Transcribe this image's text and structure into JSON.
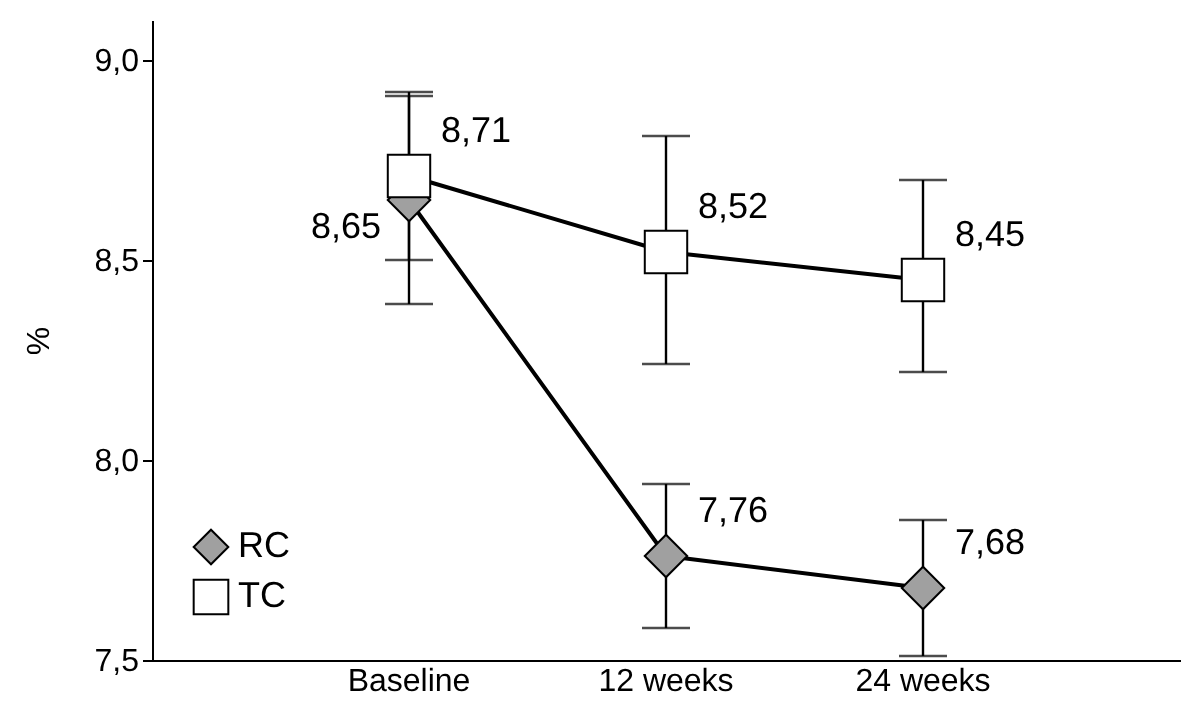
{
  "chart_data": {
    "type": "line",
    "ylabel": "%",
    "categories": [
      "Baseline",
      "12 weeks",
      "24 weeks"
    ],
    "series": [
      {
        "name": "RC",
        "color": "#a0a0a0",
        "marker": "diamond",
        "values": [
          8.65,
          7.76,
          7.68
        ],
        "value_labels": [
          "8,65",
          "7,76",
          "7,68"
        ],
        "errors": [
          [
            8.39,
            8.91
          ],
          [
            7.58,
            7.94
          ],
          [
            7.51,
            7.85
          ]
        ]
      },
      {
        "name": "TC",
        "color": "#ffffff",
        "marker": "square",
        "values": [
          8.71,
          8.52,
          8.45
        ],
        "value_labels": [
          "8,71",
          "8,52",
          "8,45"
        ],
        "errors": [
          [
            8.5,
            8.92
          ],
          [
            8.24,
            8.81
          ],
          [
            8.22,
            8.7
          ]
        ]
      }
    ],
    "ylim": [
      7.5,
      9.1
    ],
    "yticks": [
      {
        "value": 7.5,
        "label": "7,5"
      },
      {
        "value": 8.0,
        "label": "8,0"
      },
      {
        "value": 8.5,
        "label": "8,5"
      },
      {
        "value": 9.0,
        "label": "9,0"
      }
    ],
    "legend": "bottom left",
    "grid": false
  }
}
